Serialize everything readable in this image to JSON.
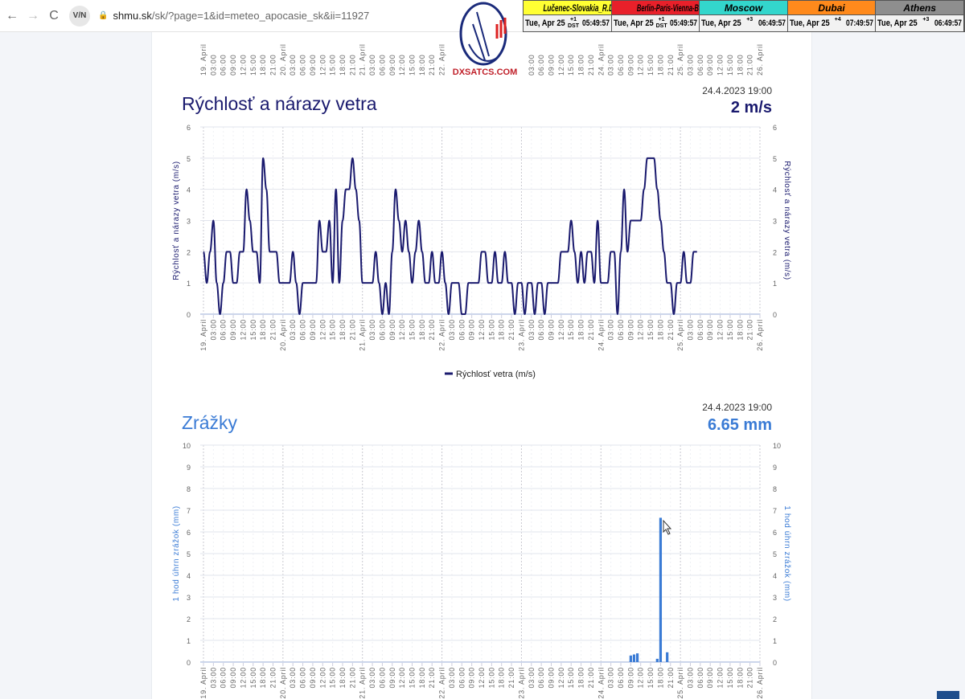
{
  "browser": {
    "url_host": "shmu.sk",
    "url_path": "/sk/?page=1&id=meteo_apocasie_sk&ii=11927",
    "vpn_label": "V/N"
  },
  "logo": {
    "text": "DXSATCS.COM"
  },
  "clocks": [
    {
      "name": "Lučenec-Slovakia_R.Dávid",
      "date": "Tue, Apr 25",
      "offset": "+1 DST",
      "time": "05:49:57",
      "color": "#ffff33",
      "text_color": "#000"
    },
    {
      "name": "Berlin-Paris-Vienna-Belgrade",
      "date": "Tue, Apr 25",
      "offset": "+1 DST",
      "time": "05:49:57",
      "color": "#e8202a",
      "text_color": "#000"
    },
    {
      "name": "Moscow",
      "date": "Tue, Apr 25",
      "offset": "+3",
      "time": "06:49:57",
      "color": "#33d6cc",
      "text_color": "#000"
    },
    {
      "name": "Dubai",
      "date": "Tue, Apr 25",
      "offset": "+4",
      "time": "07:49:57",
      "color": "#ff8a1c",
      "text_color": "#000"
    },
    {
      "name": "Athens",
      "date": "Tue, Apr 25",
      "offset": "+3",
      "time": "06:49:57",
      "color": "#8e8e8e",
      "text_color": "#000"
    }
  ],
  "axis": {
    "days": [
      "19. April",
      "20. April",
      "21. April",
      "22. April",
      "23. April",
      "24. April",
      "25. April",
      "26. April"
    ],
    "hours": [
      "03:00",
      "06:00",
      "09:00",
      "12:00",
      "15:00",
      "18:00",
      "21:00"
    ]
  },
  "chart_data": [
    {
      "type": "line",
      "title": "Rýchlosť a nárazy vetra",
      "timestamp": "24.4.2023 19:00",
      "current_value": "2 m/s",
      "ylabel": "Rýchlosť a nárazy vetra (m/s)",
      "ylim": [
        0,
        6
      ],
      "yticks": [
        "0",
        "1",
        "2",
        "3",
        "4",
        "5",
        "6"
      ],
      "legend": "Rýchlosť vetra (m/s)",
      "legend_position": "bottom-center",
      "color": "#1a1a6e",
      "x_start": "19. April 00:00",
      "x_step_hours": 1,
      "values": [
        2,
        1,
        2,
        3,
        1,
        0,
        1,
        2,
        2,
        1,
        1,
        2,
        2,
        4,
        3,
        2,
        2,
        1,
        5,
        4,
        2,
        2,
        2,
        1,
        1,
        1,
        1,
        2,
        1,
        0,
        1,
        1,
        1,
        1,
        1,
        3,
        2,
        2,
        3,
        1,
        4,
        1,
        3,
        4,
        4,
        5,
        4,
        3,
        1,
        1,
        1,
        1,
        2,
        1,
        0,
        1,
        0,
        2,
        4,
        3,
        2,
        3,
        2,
        1,
        2,
        3,
        2,
        1,
        1,
        2,
        1,
        1,
        2,
        1,
        0,
        1,
        1,
        1,
        0,
        0,
        1,
        1,
        1,
        1,
        2,
        2,
        1,
        1,
        2,
        1,
        1,
        2,
        1,
        1,
        0,
        1,
        1,
        0,
        1,
        1,
        0,
        1,
        1,
        0,
        1,
        1,
        1,
        1,
        2,
        2,
        2,
        3,
        2,
        1,
        2,
        1,
        2,
        2,
        1,
        3,
        1,
        1,
        1,
        2,
        2,
        0,
        2,
        4,
        2,
        3,
        3,
        3,
        3,
        4,
        5,
        5,
        5,
        4,
        3,
        2,
        1,
        1,
        0,
        1,
        1,
        2,
        1,
        1,
        2,
        2
      ]
    },
    {
      "type": "bar",
      "title": "Zrážky",
      "timestamp": "24.4.2023 19:00",
      "current_value": "6.65 mm",
      "ylabel": "1 hod úhrn zrážok (mm)",
      "ylim": [
        0,
        10
      ],
      "yticks": [
        "0",
        "1",
        "2",
        "3",
        "4",
        "5",
        "6",
        "7",
        "8",
        "9",
        "10"
      ],
      "color": "#3a7bd5",
      "x_start": "19. April 00:00",
      "bars": [
        {
          "hour": 129,
          "value": 0.3
        },
        {
          "hour": 130,
          "value": 0.35
        },
        {
          "hour": 131,
          "value": 0.4
        },
        {
          "hour": 137,
          "value": 0.15
        },
        {
          "hour": 138,
          "value": 6.65
        },
        {
          "hour": 140,
          "value": 0.45
        }
      ]
    }
  ]
}
